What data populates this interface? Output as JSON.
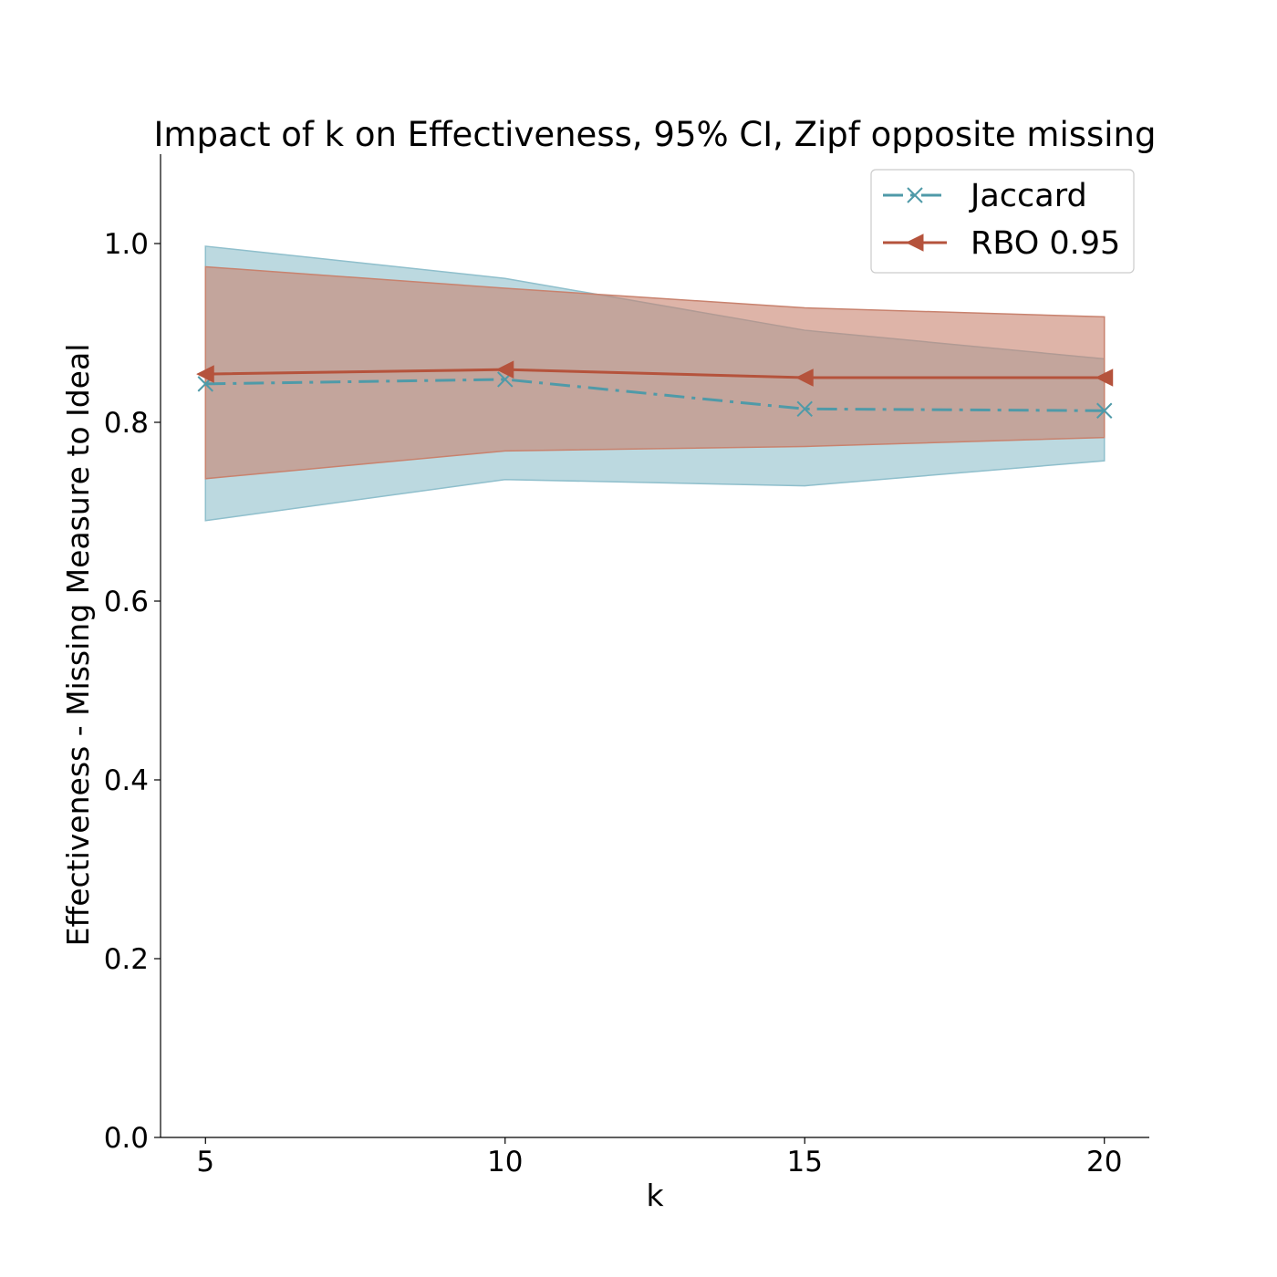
{
  "chart_data": {
    "type": "line",
    "title": "Impact of k on Effectiveness, 95% CI, Zipf opposite missing",
    "xlabel": "k",
    "ylabel": "Effectiveness - Missing Measure to Ideal",
    "x": [
      5,
      10,
      15,
      20
    ],
    "xlim": [
      4.25,
      20.75
    ],
    "ylim": [
      0.0,
      1.1
    ],
    "xticks": [
      5,
      10,
      15,
      20
    ],
    "yticks": [
      0.0,
      0.2,
      0.4,
      0.6,
      0.8,
      1.0
    ],
    "ytick_labels": [
      "0.0",
      "0.2",
      "0.4",
      "0.6",
      "0.8",
      "1.0"
    ],
    "grid": false,
    "legend_position": "top-right",
    "series": [
      {
        "name": "Jaccard",
        "values": [
          0.843,
          0.848,
          0.815,
          0.813
        ],
        "ci_lower": [
          0.69,
          0.736,
          0.729,
          0.757
        ],
        "ci_upper": [
          0.997,
          0.961,
          0.903,
          0.871
        ],
        "color": "#4f9aa8",
        "fill_color": "#8fbfcc",
        "marker": "x",
        "linestyle": "dashdot"
      },
      {
        "name": "RBO 0.95",
        "values": [
          0.854,
          0.859,
          0.85,
          0.85
        ],
        "ci_lower": [
          0.737,
          0.768,
          0.773,
          0.783
        ],
        "ci_upper": [
          0.974,
          0.95,
          0.928,
          0.918
        ],
        "color": "#b5533c",
        "fill_color": "#c8826e",
        "marker": "triangle-left",
        "linestyle": "solid"
      }
    ]
  }
}
